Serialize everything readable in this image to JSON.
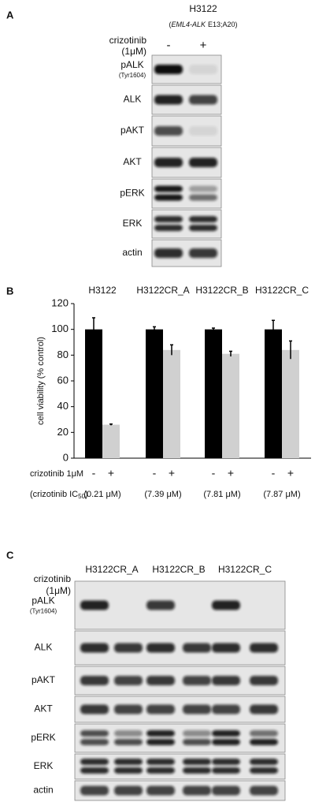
{
  "panel_a": {
    "label": "A",
    "cell_line": "H3122",
    "genotype": [
      "(",
      "EML4-ALK",
      "E13;A20)"
    ],
    "treatment": "crizotinib",
    "dose": "(1μM)",
    "lanes": [
      "-",
      "+"
    ],
    "rows": [
      {
        "label": "pALK",
        "sublabel": "(Tyr1604)"
      },
      {
        "label": "ALK"
      },
      {
        "label": "pAKT"
      },
      {
        "label": "AKT"
      },
      {
        "label": "pERK"
      },
      {
        "label": "ERK"
      },
      {
        "label": "actin"
      }
    ]
  },
  "chart_data": {
    "type": "bar",
    "panel_label": "B",
    "ylabel": "cell viability (% control)",
    "categories": [
      "H3122",
      "H3122CR_A",
      "H3122CR_B",
      "H3122CR_C"
    ],
    "series": [
      {
        "color": "#000000",
        "values": [
          100,
          100,
          100,
          100
        ],
        "errors": [
          9,
          2,
          1,
          7
        ]
      },
      {
        "color": "#d0d0d0",
        "values": [
          26,
          84,
          81,
          84
        ],
        "errors": [
          0.5,
          4,
          2,
          7
        ]
      }
    ],
    "ylim": [
      0,
      120
    ],
    "yticks": [
      0,
      20,
      40,
      60,
      80,
      100,
      120
    ],
    "treatment_label": "crizotinib 1μM",
    "treatment_signs": [
      "-",
      "+"
    ],
    "ic50_label": [
      "(crizotinib IC",
      "50",
      ")"
    ],
    "ic50_values": [
      "(0.21 μM)",
      "(7.39 μM)",
      "(7.81 μM)",
      "(7.87 μM)"
    ]
  },
  "panel_c": {
    "label": "C",
    "cell_lines": [
      "H3122CR_A",
      "H3122CR_B",
      "H3122CR_C"
    ],
    "treatment": "crizotinib",
    "dose": "(1μM)",
    "lanes": [
      "-",
      "+"
    ],
    "rows": [
      {
        "label": "pALK",
        "sublabel": "(Tyr1604)"
      },
      {
        "label": "ALK"
      },
      {
        "label": "pAKT"
      },
      {
        "label": "AKT"
      },
      {
        "label": "pERK"
      },
      {
        "label": "ERK"
      },
      {
        "label": "actin"
      }
    ]
  }
}
